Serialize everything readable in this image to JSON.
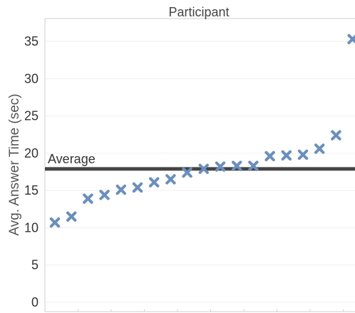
{
  "chart_data": {
    "type": "scatter",
    "title": "Participant",
    "ylabel": "Avg. Answer Time (sec)",
    "ylim": [
      0,
      37
    ],
    "yticks": [
      0,
      5,
      10,
      15,
      20,
      25,
      30,
      35
    ],
    "grid": "y",
    "marker": "x",
    "marker_color": "#6b8fbc",
    "reference_line": {
      "label": "Average",
      "value": 17.9,
      "color": "#444444"
    },
    "x": [
      1,
      2,
      3,
      4,
      5,
      6,
      7,
      8,
      9,
      10,
      11,
      12,
      13,
      14,
      15,
      16,
      17,
      18,
      19
    ],
    "values": [
      10.7,
      11.5,
      13.9,
      14.4,
      15.1,
      15.4,
      16.1,
      16.5,
      17.4,
      17.9,
      18.2,
      18.3,
      18.3,
      19.6,
      19.7,
      19.8,
      20.6,
      22.4,
      35.3
    ]
  }
}
